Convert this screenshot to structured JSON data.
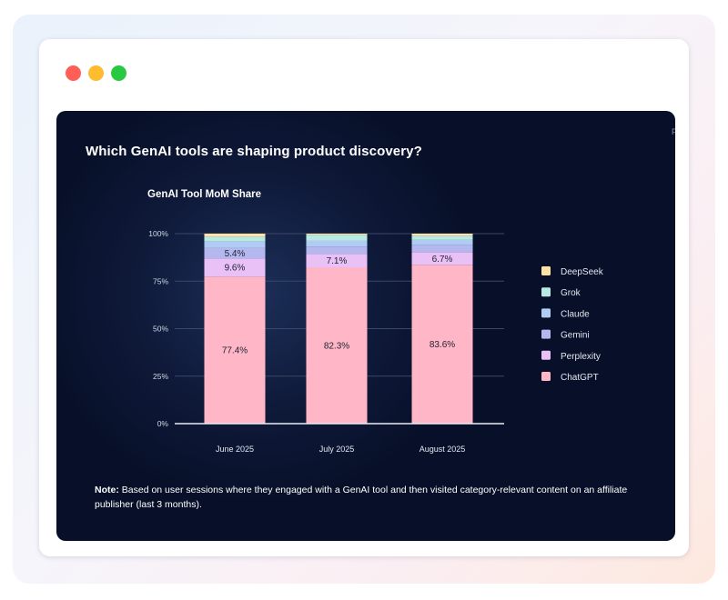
{
  "window": {
    "controls": [
      {
        "name": "close",
        "color": "#ff5f57"
      },
      {
        "name": "minimize",
        "color": "#febc2e"
      },
      {
        "name": "maximize",
        "color": "#28c840"
      }
    ]
  },
  "card": {
    "title": "Which GenAI tools are shaping product discovery?",
    "edge_mark": "P",
    "note_label": "Note:",
    "note_text": " Based on user sessions where they engaged with a GenAI tool and then visited category-relevant content on an affiliate publisher (last 3 months)."
  },
  "chart_data": {
    "type": "bar",
    "stacked": true,
    "title": "GenAI Tool MoM Share",
    "categories": [
      "June 2025",
      "July 2025",
      "August 2025"
    ],
    "y_ticks": [
      "0%",
      "25%",
      "50%",
      "75%",
      "100%"
    ],
    "ylim": [
      0,
      100
    ],
    "grid": true,
    "legend_position": "right",
    "series": [
      {
        "name": "ChatGPT",
        "color": "#ffb6c6",
        "values": [
          77.4,
          82.3,
          83.6
        ],
        "labels": [
          "77.4%",
          "82.3%",
          "83.6%"
        ]
      },
      {
        "name": "Perplexity",
        "color": "#e9c1f7",
        "values": [
          9.6,
          7.1,
          6.7
        ],
        "labels": [
          "9.6%",
          "7.1%",
          "6.7%"
        ]
      },
      {
        "name": "Gemini",
        "color": "#b5b8ee",
        "values": [
          5.4,
          3.8,
          3.6
        ],
        "labels": [
          "5.4%",
          "",
          ""
        ]
      },
      {
        "name": "Claude",
        "color": "#b0ccf5",
        "values": [
          3.4,
          3.0,
          2.8
        ],
        "labels": [
          "",
          "",
          ""
        ]
      },
      {
        "name": "Grok",
        "color": "#b9e9e3",
        "values": [
          2.6,
          3.2,
          2.2
        ],
        "labels": [
          "",
          "",
          ""
        ]
      },
      {
        "name": "DeepSeek",
        "color": "#fce3a4",
        "values": [
          1.6,
          0.6,
          1.1
        ],
        "labels": [
          "",
          "",
          ""
        ]
      }
    ]
  }
}
